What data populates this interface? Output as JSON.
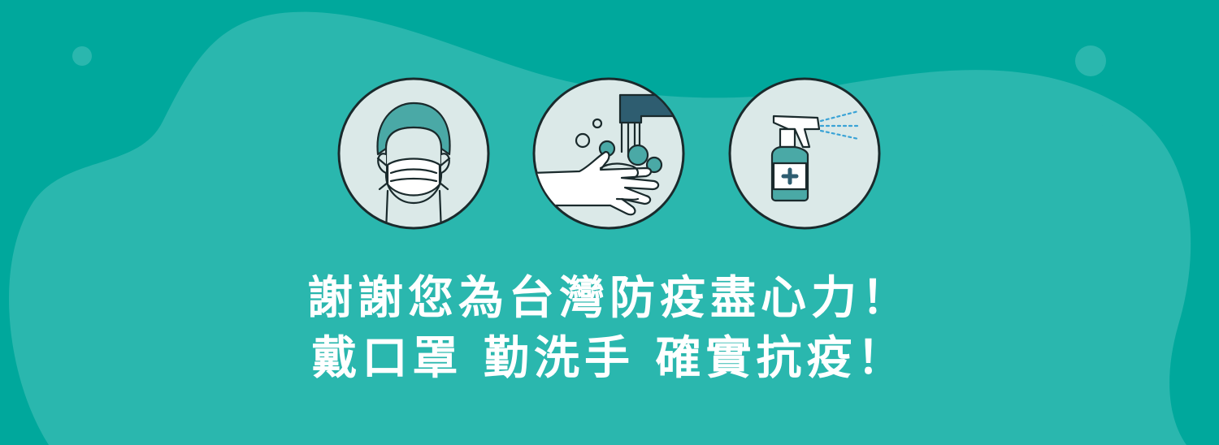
{
  "colors": {
    "background": "#00a89c",
    "blob": "#2ab7ae",
    "circle_fill": "#dbe9e8",
    "line": "#1a2a2c",
    "accent_dark": "#2e5d70",
    "accent_teal": "#4aa9a6",
    "spray": "#3aa3d6",
    "text": "#ffffff"
  },
  "icons": [
    {
      "name": "face-mask-icon"
    },
    {
      "name": "hand-washing-icon"
    },
    {
      "name": "sanitizer-spray-icon"
    }
  ],
  "slogan": {
    "line1": "謝謝您為台灣防疫盡心力！",
    "line2": "戴口罩 勤洗手 確實抗疫！"
  }
}
